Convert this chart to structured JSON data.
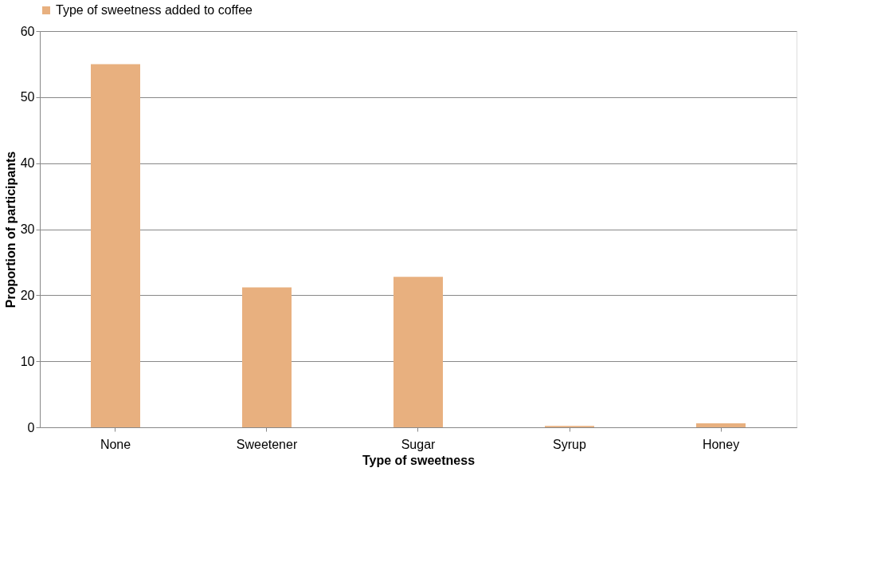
{
  "chart_data": {
    "type": "bar",
    "xlabel": "Type of sweetness",
    "ylabel": "Proportion of participants",
    "categories": [
      "None",
      "Sweetener",
      "Sugar",
      "Syrup",
      "Honey"
    ],
    "series": [
      {
        "name": "Type of sweetness added to coffee",
        "color": "#e8b07f",
        "values": [
          55,
          21.2,
          22.8,
          0.2,
          0.6
        ]
      }
    ],
    "ylim": [
      0,
      60
    ],
    "yticks": [
      0,
      10,
      20,
      30,
      40,
      50,
      60
    ],
    "grid": "y",
    "legend": "top"
  }
}
